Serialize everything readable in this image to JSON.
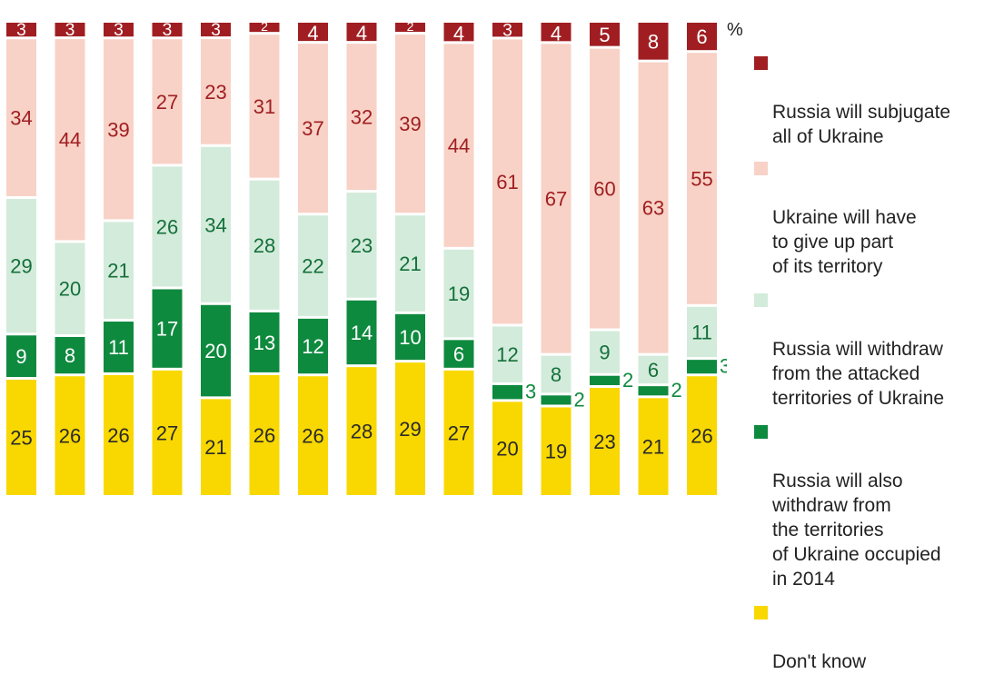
{
  "chart_data": {
    "type": "bar",
    "stacked": true,
    "orientation": "vertical",
    "unit": "%",
    "categories": [
      "",
      "",
      "",
      "",
      "",
      "",
      "",
      "",
      "",
      "",
      "",
      "",
      "",
      "",
      ""
    ],
    "series": [
      {
        "name": "Russia will subjugate all of Ukraine",
        "color": "#a01e22",
        "values": [
          3,
          3,
          3,
          3,
          3,
          2,
          4,
          4,
          2,
          4,
          3,
          4,
          5,
          8,
          6
        ]
      },
      {
        "name": "Ukraine will have to give up part of its territory",
        "color": "#f8d2c6",
        "values": [
          34,
          44,
          39,
          27,
          23,
          31,
          37,
          32,
          39,
          44,
          61,
          67,
          60,
          63,
          55
        ]
      },
      {
        "name": "Russia will withdraw from the attacked territories of Ukraine",
        "color": "#d3ebdb",
        "values": [
          29,
          20,
          21,
          26,
          34,
          28,
          22,
          23,
          21,
          19,
          12,
          8,
          9,
          6,
          11
        ]
      },
      {
        "name": "Russia will also withdraw from the territories of Ukraine occupied in 2014",
        "color": "#0e8a3e",
        "values": [
          9,
          8,
          11,
          17,
          20,
          13,
          12,
          14,
          10,
          6,
          3,
          2,
          2,
          2,
          3
        ]
      },
      {
        "name": "Don't know",
        "color": "#f8d800",
        "values": [
          25,
          26,
          26,
          27,
          21,
          26,
          26,
          28,
          29,
          27,
          20,
          19,
          23,
          21,
          26
        ]
      }
    ],
    "label_colors": [
      "#ffffff",
      "#a01e22",
      "#14703a",
      "#ffffff",
      "#2a2a2a"
    ]
  },
  "legend": [
    {
      "label": "Russia will subjugate\nall of Ukraine",
      "color": "#a01e22"
    },
    {
      "label": "Ukraine will have\nto give up part\nof its territory",
      "color": "#f8d2c6"
    },
    {
      "label": "Russia will withdraw\nfrom the attacked\nterritories of Ukraine",
      "color": "#d3ebdb"
    },
    {
      "label": "Russia will also\nwithdraw from\nthe territories\nof Ukraine occupied\nin 2014",
      "color": "#0e8a3e"
    },
    {
      "label": "Don't know",
      "color": "#f8d800"
    }
  ],
  "unit_label": "%"
}
